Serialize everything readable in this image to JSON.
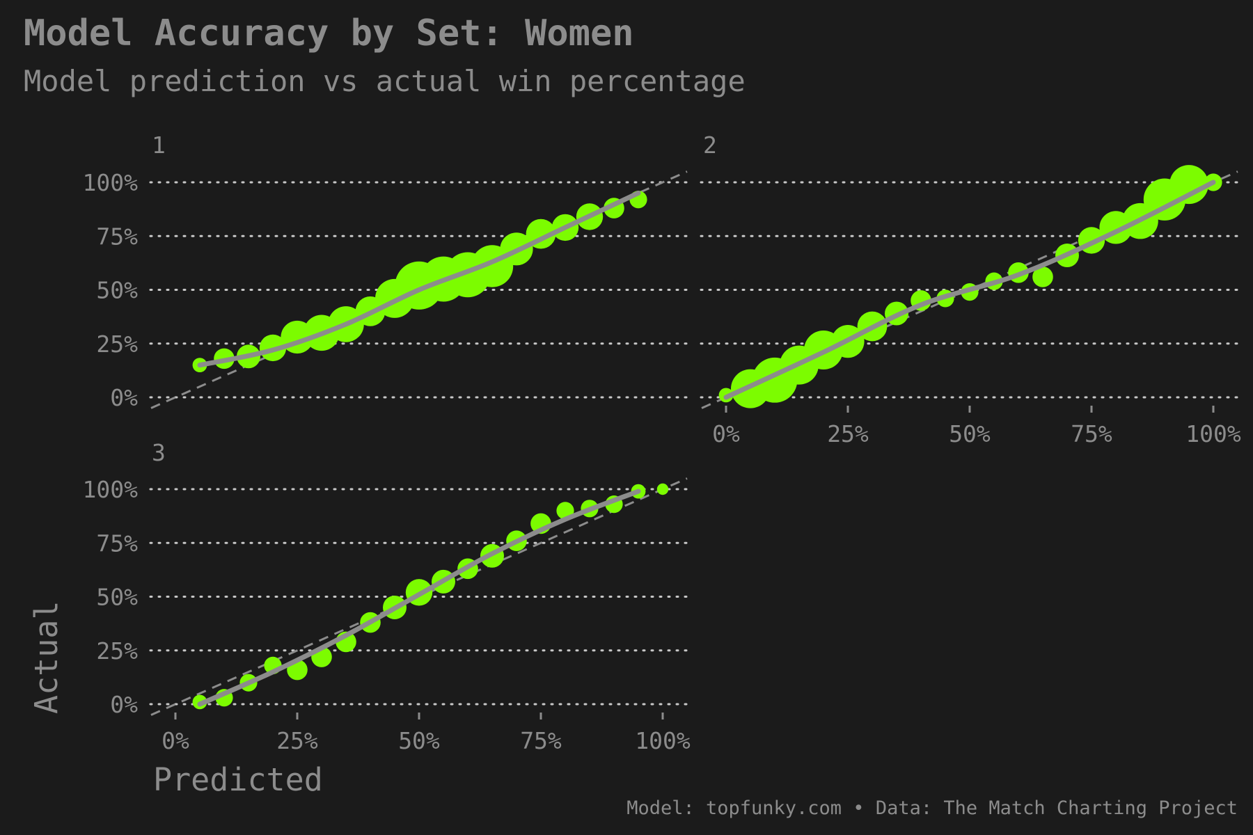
{
  "title": "Model Accuracy by Set: Women",
  "subtitle": "Model prediction vs actual win percentage",
  "caption": "Model: topfunky.com • Data: The Match Charting Project",
  "colors": {
    "background": "#1b1b1b",
    "point": "#7cfc00",
    "smooth": "#8c8c8c",
    "text": "#8c8c8c",
    "grid": "#c8c8c8"
  },
  "chart_data": [
    {
      "type": "scatter",
      "facet": "1",
      "xlabel": "Predicted",
      "ylabel": "Actual",
      "xlim": [
        -0.05,
        1.05
      ],
      "ylim": [
        -0.05,
        1.05
      ],
      "x_ticks": [
        "0%",
        "25%",
        "50%",
        "75%",
        "100%"
      ],
      "y_ticks": [
        "0%",
        "25%",
        "50%",
        "75%",
        "100%"
      ],
      "reference_line": "y = x (dashed)",
      "points": [
        {
          "x": 0.05,
          "y": 0.15,
          "n": 2
        },
        {
          "x": 0.1,
          "y": 0.18,
          "n": 4
        },
        {
          "x": 0.15,
          "y": 0.19,
          "n": 5
        },
        {
          "x": 0.2,
          "y": 0.23,
          "n": 6
        },
        {
          "x": 0.25,
          "y": 0.28,
          "n": 8
        },
        {
          "x": 0.3,
          "y": 0.3,
          "n": 9
        },
        {
          "x": 0.35,
          "y": 0.34,
          "n": 9
        },
        {
          "x": 0.4,
          "y": 0.4,
          "n": 7
        },
        {
          "x": 0.45,
          "y": 0.46,
          "n": 10
        },
        {
          "x": 0.5,
          "y": 0.52,
          "n": 13
        },
        {
          "x": 0.55,
          "y": 0.55,
          "n": 12
        },
        {
          "x": 0.6,
          "y": 0.57,
          "n": 12
        },
        {
          "x": 0.65,
          "y": 0.61,
          "n": 11
        },
        {
          "x": 0.7,
          "y": 0.69,
          "n": 8
        },
        {
          "x": 0.75,
          "y": 0.76,
          "n": 7
        },
        {
          "x": 0.8,
          "y": 0.79,
          "n": 6
        },
        {
          "x": 0.85,
          "y": 0.84,
          "n": 6
        },
        {
          "x": 0.9,
          "y": 0.88,
          "n": 4
        },
        {
          "x": 0.95,
          "y": 0.92,
          "n": 3
        }
      ],
      "smooth": [
        [
          0.05,
          0.15
        ],
        [
          0.2,
          0.22
        ],
        [
          0.35,
          0.34
        ],
        [
          0.5,
          0.5
        ],
        [
          0.65,
          0.63
        ],
        [
          0.8,
          0.79
        ],
        [
          0.95,
          0.95
        ]
      ]
    },
    {
      "type": "scatter",
      "facet": "2",
      "xlabel": "Predicted",
      "ylabel": "Actual",
      "xlim": [
        -0.05,
        1.05
      ],
      "ylim": [
        -0.05,
        1.05
      ],
      "x_ticks": [
        "0%",
        "25%",
        "50%",
        "75%",
        "100%"
      ],
      "y_ticks": [
        "0%",
        "25%",
        "50%",
        "75%",
        "100%"
      ],
      "reference_line": "y = x (dashed)",
      "points": [
        {
          "x": 0.0,
          "y": 0.01,
          "n": 2
        },
        {
          "x": 0.05,
          "y": 0.04,
          "n": 10
        },
        {
          "x": 0.1,
          "y": 0.08,
          "n": 12
        },
        {
          "x": 0.15,
          "y": 0.15,
          "n": 10
        },
        {
          "x": 0.2,
          "y": 0.22,
          "n": 10
        },
        {
          "x": 0.25,
          "y": 0.26,
          "n": 8
        },
        {
          "x": 0.3,
          "y": 0.33,
          "n": 7
        },
        {
          "x": 0.35,
          "y": 0.39,
          "n": 5
        },
        {
          "x": 0.4,
          "y": 0.45,
          "n": 4
        },
        {
          "x": 0.45,
          "y": 0.46,
          "n": 3
        },
        {
          "x": 0.5,
          "y": 0.49,
          "n": 3
        },
        {
          "x": 0.55,
          "y": 0.54,
          "n": 3
        },
        {
          "x": 0.6,
          "y": 0.58,
          "n": 4
        },
        {
          "x": 0.65,
          "y": 0.56,
          "n": 4
        },
        {
          "x": 0.7,
          "y": 0.66,
          "n": 5
        },
        {
          "x": 0.75,
          "y": 0.73,
          "n": 6
        },
        {
          "x": 0.8,
          "y": 0.79,
          "n": 8
        },
        {
          "x": 0.85,
          "y": 0.82,
          "n": 9
        },
        {
          "x": 0.9,
          "y": 0.92,
          "n": 11
        },
        {
          "x": 0.95,
          "y": 0.99,
          "n": 10
        },
        {
          "x": 1.0,
          "y": 1.0,
          "n": 3
        }
      ],
      "smooth": [
        [
          0.0,
          0.0
        ],
        [
          0.2,
          0.21
        ],
        [
          0.4,
          0.43
        ],
        [
          0.6,
          0.57
        ],
        [
          0.8,
          0.77
        ],
        [
          1.0,
          1.0
        ]
      ]
    },
    {
      "type": "scatter",
      "facet": "3",
      "xlabel": "Predicted",
      "ylabel": "Actual",
      "xlim": [
        -0.05,
        1.05
      ],
      "ylim": [
        -0.05,
        1.05
      ],
      "x_ticks": [
        "0%",
        "25%",
        "50%",
        "75%",
        "100%"
      ],
      "y_ticks": [
        "0%",
        "25%",
        "50%",
        "75%",
        "100%"
      ],
      "reference_line": "y = x (dashed)",
      "points": [
        {
          "x": 0.05,
          "y": 0.01,
          "n": 2
        },
        {
          "x": 0.1,
          "y": 0.03,
          "n": 3
        },
        {
          "x": 0.15,
          "y": 0.1,
          "n": 3
        },
        {
          "x": 0.2,
          "y": 0.18,
          "n": 3
        },
        {
          "x": 0.25,
          "y": 0.16,
          "n": 4
        },
        {
          "x": 0.3,
          "y": 0.22,
          "n": 4
        },
        {
          "x": 0.35,
          "y": 0.29,
          "n": 4
        },
        {
          "x": 0.4,
          "y": 0.38,
          "n": 4
        },
        {
          "x": 0.45,
          "y": 0.45,
          "n": 5
        },
        {
          "x": 0.5,
          "y": 0.52,
          "n": 6
        },
        {
          "x": 0.55,
          "y": 0.57,
          "n": 5
        },
        {
          "x": 0.6,
          "y": 0.63,
          "n": 4
        },
        {
          "x": 0.65,
          "y": 0.69,
          "n": 5
        },
        {
          "x": 0.7,
          "y": 0.76,
          "n": 4
        },
        {
          "x": 0.75,
          "y": 0.84,
          "n": 4
        },
        {
          "x": 0.8,
          "y": 0.9,
          "n": 3
        },
        {
          "x": 0.85,
          "y": 0.91,
          "n": 3
        },
        {
          "x": 0.9,
          "y": 0.93,
          "n": 3
        },
        {
          "x": 0.95,
          "y": 0.99,
          "n": 2
        },
        {
          "x": 1.0,
          "y": 1.0,
          "n": 1
        }
      ],
      "smooth": [
        [
          0.05,
          0.0
        ],
        [
          0.2,
          0.15
        ],
        [
          0.35,
          0.32
        ],
        [
          0.5,
          0.51
        ],
        [
          0.65,
          0.7
        ],
        [
          0.8,
          0.86
        ],
        [
          0.95,
          0.99
        ]
      ]
    }
  ]
}
